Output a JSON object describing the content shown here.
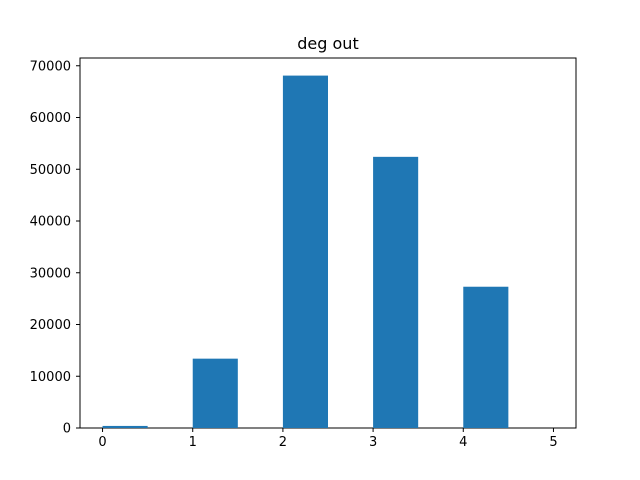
{
  "chart_data": {
    "type": "bar",
    "title": "deg out",
    "xlabel": "",
    "ylabel": "",
    "bars": [
      {
        "x": 0.25,
        "value": 400
      },
      {
        "x": 1.25,
        "value": 13400
      },
      {
        "x": 2.25,
        "value": 68100
      },
      {
        "x": 3.25,
        "value": 52400
      },
      {
        "x": 4.25,
        "value": 27300
      }
    ],
    "bar_width": 0.5,
    "xlim": [
      -0.25,
      5.25
    ],
    "ylim": [
      0,
      71500
    ],
    "xticks": [
      0,
      1,
      2,
      3,
      4,
      5
    ],
    "yticks": [
      0,
      10000,
      20000,
      30000,
      40000,
      50000,
      60000,
      70000
    ],
    "bar_color": "#1f77b4",
    "grid": false,
    "legend": "none"
  }
}
